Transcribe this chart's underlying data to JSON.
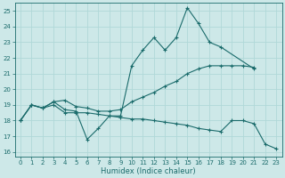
{
  "xlabel": "Humidex (Indice chaleur)",
  "xlim": [
    -0.5,
    23.5
  ],
  "ylim": [
    15.7,
    25.5
  ],
  "yticks": [
    16,
    17,
    18,
    19,
    20,
    21,
    22,
    23,
    24,
    25
  ],
  "xticks": [
    0,
    1,
    2,
    3,
    4,
    5,
    6,
    7,
    8,
    9,
    10,
    11,
    12,
    13,
    14,
    15,
    16,
    17,
    18,
    19,
    20,
    21,
    22,
    23
  ],
  "bg_color": "#cde8e8",
  "grid_color": "#b0d8d8",
  "line_color": "#1a6b6b",
  "line1_x": [
    0,
    1,
    2,
    3,
    4,
    5,
    6,
    7,
    8,
    9,
    10,
    11,
    12,
    13,
    14,
    15,
    16,
    17,
    18,
    21
  ],
  "line1_y": [
    18.0,
    19.0,
    18.8,
    19.2,
    18.7,
    18.6,
    16.8,
    17.5,
    18.3,
    18.3,
    21.5,
    22.5,
    23.3,
    22.5,
    23.3,
    25.2,
    24.2,
    23.0,
    22.7,
    21.3
  ],
  "line2_x": [
    0,
    1,
    2,
    3,
    4,
    5,
    6,
    7,
    8,
    9,
    10,
    11,
    12,
    13,
    14,
    15,
    16,
    17,
    18,
    19,
    20,
    21
  ],
  "line2_y": [
    18.0,
    19.0,
    18.8,
    19.2,
    19.3,
    18.9,
    18.8,
    18.6,
    18.6,
    18.7,
    19.2,
    19.5,
    19.8,
    20.2,
    20.5,
    21.0,
    21.3,
    21.5,
    21.5,
    21.5,
    21.5,
    21.4
  ],
  "line3_x": [
    0,
    1,
    2,
    3,
    4,
    5,
    6,
    7,
    8,
    9,
    10,
    11,
    12,
    13,
    14,
    15,
    16,
    17,
    18,
    19,
    20,
    21,
    22,
    23
  ],
  "line3_y": [
    18.0,
    19.0,
    18.8,
    19.0,
    18.5,
    18.5,
    18.5,
    18.4,
    18.3,
    18.2,
    18.1,
    18.1,
    18.0,
    17.9,
    17.8,
    17.7,
    17.5,
    17.4,
    17.3,
    18.0,
    18.0,
    17.8,
    16.5,
    16.2
  ]
}
